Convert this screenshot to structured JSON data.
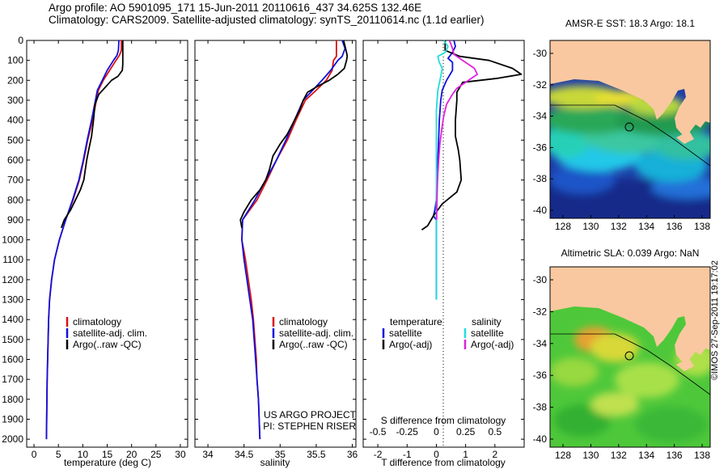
{
  "header": {
    "line1": "Argo profile: AO 5901095_171 15-Jun-2011 20110616_437 34.625S 132.46E",
    "line2": "Climatology: CARS2009. Satellite-adjusted climatology: synTS_20110614.nc (1.1d earlier)"
  },
  "side_stamp": "©IMOS 27-Sep-2011 19:17:02",
  "colors": {
    "climatology": "#dd1111",
    "satellite": "#1010dd",
    "argo": "#000000",
    "salinity_sat": "#22dddd",
    "salinity_argo": "#dd22dd",
    "land": "#f9c8a0"
  },
  "chart_data": [
    {
      "type": "line",
      "id": "temperature",
      "xlabel": "temperature (deg C)",
      "x_ticks": [
        0,
        5,
        10,
        15,
        20,
        25,
        30
      ],
      "y_ticks": [
        0,
        100,
        200,
        300,
        400,
        500,
        600,
        700,
        800,
        900,
        1000,
        1100,
        1200,
        1300,
        1400,
        1500,
        1600,
        1700,
        1800,
        1900,
        2000
      ],
      "xlim": [
        -1.5,
        31.5
      ],
      "ylim": [
        2040,
        0
      ],
      "legend": [
        "climatology",
        "satellite-adj. clim.",
        "Argo(..raw -QC)"
      ],
      "series": [
        {
          "name": "climatology",
          "color": "#dd1111",
          "points": [
            [
              17.9,
              0
            ],
            [
              17.9,
              50
            ],
            [
              17.5,
              75
            ],
            [
              16.8,
              100
            ],
            [
              15.5,
              150
            ],
            [
              14.2,
              200
            ],
            [
              13.2,
              250
            ],
            [
              12.8,
              300
            ],
            [
              12.0,
              400
            ],
            [
              11.0,
              500
            ],
            [
              10.2,
              600
            ],
            [
              9.3,
              700
            ],
            [
              8.0,
              800
            ],
            [
              6.5,
              900
            ],
            [
              5.2,
              1000
            ],
            [
              4.2,
              1100
            ],
            [
              3.6,
              1200
            ],
            [
              3.2,
              1300
            ],
            [
              3.0,
              1400
            ],
            [
              2.9,
              1500
            ],
            [
              2.8,
              1600
            ],
            [
              2.7,
              1700
            ],
            [
              2.65,
              1800
            ],
            [
              2.6,
              1900
            ],
            [
              2.55,
              2000
            ]
          ]
        },
        {
          "name": "satellite-adj. clim.",
          "color": "#1010dd",
          "points": [
            [
              17.4,
              0
            ],
            [
              17.3,
              50
            ],
            [
              17.0,
              75
            ],
            [
              16.3,
              100
            ],
            [
              15.0,
              150
            ],
            [
              14.0,
              200
            ],
            [
              13.0,
              250
            ],
            [
              12.6,
              300
            ],
            [
              11.8,
              400
            ],
            [
              10.9,
              500
            ],
            [
              10.1,
              600
            ],
            [
              9.2,
              700
            ],
            [
              7.9,
              800
            ],
            [
              6.5,
              900
            ],
            [
              5.2,
              1000
            ],
            [
              4.2,
              1100
            ],
            [
              3.6,
              1200
            ],
            [
              3.2,
              1300
            ],
            [
              3.0,
              1400
            ],
            [
              2.9,
              1500
            ],
            [
              2.8,
              1600
            ],
            [
              2.7,
              1700
            ],
            [
              2.65,
              1800
            ],
            [
              2.6,
              1900
            ],
            [
              2.55,
              2000
            ]
          ]
        },
        {
          "name": "Argo(..raw -QC)",
          "color": "#000000",
          "points": [
            [
              18.2,
              0
            ],
            [
              18.2,
              90
            ],
            [
              18.2,
              120
            ],
            [
              18.1,
              150
            ],
            [
              17.2,
              180
            ],
            [
              15.9,
              200
            ],
            [
              14.8,
              230
            ],
            [
              13.3,
              270
            ],
            [
              12.5,
              320
            ],
            [
              12.2,
              400
            ],
            [
              11.8,
              480
            ],
            [
              11.2,
              550
            ],
            [
              10.8,
              600
            ],
            [
              10.5,
              650
            ],
            [
              10.2,
              700
            ],
            [
              9.5,
              750
            ],
            [
              8.5,
              800
            ],
            [
              7.5,
              850
            ],
            [
              6.2,
              900
            ],
            [
              5.6,
              940
            ]
          ]
        }
      ]
    },
    {
      "type": "line",
      "id": "salinity",
      "xlabel": "salinity",
      "x_ticks": [
        34,
        34.5,
        35,
        35.5,
        36
      ],
      "xlim": [
        33.82,
        36.05
      ],
      "ylim": [
        2040,
        0
      ],
      "legend": [
        "climatology",
        "satellite-adj. clim.",
        "Argo(..raw -QC)"
      ],
      "annotation": [
        "US ARGO PROJECT",
        "PI: STEPHEN RISER"
      ],
      "series": [
        {
          "name": "climatology",
          "color": "#dd1111",
          "points": [
            [
              35.78,
              0
            ],
            [
              35.78,
              80
            ],
            [
              35.74,
              100
            ],
            [
              35.72,
              150
            ],
            [
              35.64,
              200
            ],
            [
              35.5,
              250
            ],
            [
              35.35,
              300
            ],
            [
              35.22,
              400
            ],
            [
              35.1,
              500
            ],
            [
              34.95,
              600
            ],
            [
              34.82,
              700
            ],
            [
              34.68,
              800
            ],
            [
              34.48,
              900
            ],
            [
              34.47,
              1000
            ],
            [
              34.52,
              1100
            ],
            [
              34.56,
              1200
            ],
            [
              34.6,
              1300
            ],
            [
              34.63,
              1400
            ],
            [
              34.65,
              1500
            ],
            [
              34.67,
              1600
            ],
            [
              34.68,
              1700
            ],
            [
              34.7,
              1800
            ],
            [
              34.71,
              1900
            ],
            [
              34.72,
              2000
            ]
          ]
        },
        {
          "name": "satellite-adj. clim.",
          "color": "#1010dd",
          "points": [
            [
              35.86,
              0
            ],
            [
              35.9,
              40
            ],
            [
              35.86,
              80
            ],
            [
              35.8,
              100
            ],
            [
              35.7,
              150
            ],
            [
              35.58,
              200
            ],
            [
              35.45,
              250
            ],
            [
              35.32,
              300
            ],
            [
              35.2,
              400
            ],
            [
              35.08,
              500
            ],
            [
              34.95,
              600
            ],
            [
              34.8,
              700
            ],
            [
              34.65,
              800
            ],
            [
              34.48,
              900
            ],
            [
              34.47,
              1000
            ],
            [
              34.5,
              1100
            ],
            [
              34.54,
              1200
            ],
            [
              34.58,
              1300
            ],
            [
              34.62,
              1400
            ],
            [
              34.64,
              1500
            ],
            [
              34.66,
              1600
            ],
            [
              34.68,
              1700
            ],
            [
              34.7,
              1800
            ],
            [
              34.71,
              1900
            ],
            [
              34.72,
              2000
            ]
          ]
        },
        {
          "name": "Argo(..raw -QC)",
          "color": "#000000",
          "points": [
            [
              35.88,
              0
            ],
            [
              35.92,
              60
            ],
            [
              35.93,
              80
            ],
            [
              35.92,
              100
            ],
            [
              35.89,
              140
            ],
            [
              35.8,
              170
            ],
            [
              35.68,
              200
            ],
            [
              35.52,
              230
            ],
            [
              35.38,
              260
            ],
            [
              35.32,
              300
            ],
            [
              35.27,
              350
            ],
            [
              35.2,
              400
            ],
            [
              35.1,
              470
            ],
            [
              35.0,
              520
            ],
            [
              34.9,
              580
            ],
            [
              34.85,
              650
            ],
            [
              34.8,
              700
            ],
            [
              34.72,
              750
            ],
            [
              34.6,
              800
            ],
            [
              34.5,
              860
            ],
            [
              34.45,
              900
            ],
            [
              34.47,
              940
            ]
          ]
        }
      ]
    },
    {
      "type": "line",
      "id": "difference",
      "xlabel_bottom": "T difference from climatology",
      "xlabel_top": "S difference from climatology",
      "x_ticks_T": [
        -2,
        -1,
        0,
        1,
        2
      ],
      "x_ticks_S_labels": [
        "-0.5",
        "-0.25",
        "0",
        "0.25",
        "0.5"
      ],
      "x_ticks_S_positions": [
        -2,
        -1,
        0,
        1,
        2
      ],
      "xlim": [
        -2.5,
        3.0
      ],
      "ylim": [
        2040,
        0
      ],
      "legend_titles": [
        "temperature",
        "salinity"
      ],
      "legend": [
        "satellite",
        "Argo(-adj)",
        "satellite",
        "Argo(-adj)"
      ],
      "series": [
        {
          "name": "T satellite",
          "color": "#1010dd",
          "points": [
            [
              0.6,
              0
            ],
            [
              0.65,
              30
            ],
            [
              0.55,
              60
            ],
            [
              0.4,
              90
            ],
            [
              0.55,
              110
            ],
            [
              0.55,
              150
            ],
            [
              0.35,
              200
            ],
            [
              0.2,
              250
            ],
            [
              0.15,
              300
            ],
            [
              0.1,
              400
            ],
            [
              0.08,
              500
            ],
            [
              0.05,
              600
            ],
            [
              0.02,
              700
            ],
            [
              0.0,
              800
            ],
            [
              -0.05,
              850
            ],
            [
              -0.1,
              880
            ],
            [
              0.0,
              900
            ],
            [
              0.0,
              1000
            ],
            [
              0.0,
              1100
            ],
            [
              0.0,
              1200
            ],
            [
              0.0,
              1300
            ]
          ]
        },
        {
          "name": "T Argo",
          "color": "#000000",
          "points": [
            [
              0.3,
              0
            ],
            [
              0.3,
              50
            ],
            [
              0.8,
              80
            ],
            [
              1.8,
              100
            ],
            [
              2.6,
              140
            ],
            [
              2.9,
              170
            ],
            [
              2.1,
              190
            ],
            [
              0.9,
              210
            ],
            [
              0.7,
              260
            ],
            [
              0.7,
              300
            ],
            [
              0.65,
              400
            ],
            [
              0.65,
              480
            ],
            [
              0.75,
              550
            ],
            [
              0.8,
              600
            ],
            [
              0.85,
              700
            ],
            [
              0.7,
              760
            ],
            [
              0.2,
              820
            ],
            [
              -0.1,
              880
            ],
            [
              -0.3,
              930
            ],
            [
              -0.5,
              950
            ]
          ]
        },
        {
          "name": "S satellite",
          "color": "#22dddd",
          "points": [
            [
              0.25,
              0
            ],
            [
              0.4,
              30
            ],
            [
              0.3,
              60
            ],
            [
              0.05,
              80
            ],
            [
              0.1,
              110
            ],
            [
              0.2,
              140
            ],
            [
              0.15,
              180
            ],
            [
              0.05,
              250
            ],
            [
              0.0,
              350
            ],
            [
              0.0,
              500
            ],
            [
              0.0,
              600
            ],
            [
              0.0,
              800
            ],
            [
              0.0,
              1000
            ],
            [
              0.0,
              1300
            ]
          ]
        },
        {
          "name": "S Argo",
          "color": "#dd22dd",
          "points": [
            [
              0.45,
              0
            ],
            [
              0.55,
              40
            ],
            [
              0.6,
              70
            ],
            [
              0.9,
              100
            ],
            [
              1.3,
              140
            ],
            [
              1.4,
              170
            ],
            [
              1.1,
              200
            ],
            [
              0.7,
              240
            ],
            [
              0.55,
              270
            ],
            [
              0.35,
              320
            ],
            [
              0.25,
              380
            ],
            [
              0.18,
              450
            ],
            [
              0.12,
              520
            ],
            [
              0.08,
              600
            ],
            [
              0.04,
              700
            ],
            [
              0.02,
              800
            ],
            [
              0.01,
              900
            ]
          ]
        }
      ]
    }
  ],
  "maps": [
    {
      "id": "sst",
      "title": "AMSR-E SST: 18.3 Argo: 18.1",
      "x_ticks": [
        "128",
        "130",
        "132",
        "134",
        "136",
        "138"
      ],
      "y_ticks": [
        "-30",
        "-32",
        "-34",
        "-36",
        "-38",
        "-40"
      ]
    },
    {
      "id": "sla",
      "title": "Altimetric SLA: 0.039 Argo: NaN",
      "x_ticks": [
        "128",
        "130",
        "132",
        "134",
        "136",
        "138"
      ],
      "y_ticks": [
        "-30",
        "-32",
        "-34",
        "-36",
        "-38",
        "-40"
      ]
    }
  ]
}
